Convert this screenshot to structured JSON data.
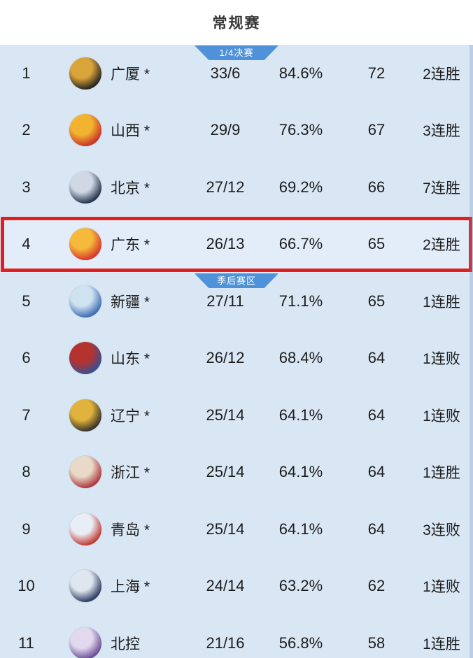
{
  "header": {
    "title": "常规赛"
  },
  "table": {
    "rows": [
      {
        "rank": "1",
        "team": "广厦 *",
        "record": "33/6",
        "win_pct": "84.6%",
        "points": "72",
        "streak": "2连胜",
        "section_badge": "1/4决赛",
        "logo": {
          "name": "guangsha-lions-logo",
          "colors": [
            "#2a2620",
            "#d9a43a"
          ]
        }
      },
      {
        "rank": "2",
        "team": "山西 *",
        "record": "29/9",
        "win_pct": "76.3%",
        "points": "67",
        "streak": "3连胜",
        "logo": {
          "name": "shanxi-loongs-logo",
          "colors": [
            "#c8342b",
            "#f2b430"
          ]
        }
      },
      {
        "rank": "3",
        "team": "北京 *",
        "record": "27/12",
        "win_pct": "69.2%",
        "points": "66",
        "streak": "7连胜",
        "logo": {
          "name": "beijing-ducks-logo",
          "colors": [
            "#27364f",
            "#cfd8e4"
          ]
        }
      },
      {
        "rank": "4",
        "team": "广东 *",
        "record": "26/13",
        "win_pct": "66.7%",
        "points": "65",
        "streak": "2连胜",
        "highlighted": true,
        "logo": {
          "name": "guangdong-tigers-logo",
          "colors": [
            "#d8372b",
            "#f5b93c"
          ]
        }
      },
      {
        "rank": "5",
        "team": "新疆 *",
        "record": "27/11",
        "win_pct": "71.1%",
        "points": "65",
        "streak": "1连胜",
        "section_badge": "季后赛区",
        "logo": {
          "name": "xinjiang-flying-tigers-logo",
          "colors": [
            "#3f6fb5",
            "#cfe2f0"
          ]
        }
      },
      {
        "rank": "6",
        "team": "山东 *",
        "record": "26/12",
        "win_pct": "68.4%",
        "points": "64",
        "streak": "1连败",
        "logo": {
          "name": "shandong-heroes-logo",
          "colors": [
            "#3a4f8f",
            "#b5332f"
          ]
        }
      },
      {
        "rank": "7",
        "team": "辽宁 *",
        "record": "25/14",
        "win_pct": "64.1%",
        "points": "64",
        "streak": "1连败",
        "logo": {
          "name": "liaoning-leopards-logo",
          "colors": [
            "#3a342a",
            "#e0b33c"
          ]
        }
      },
      {
        "rank": "8",
        "team": "浙江 *",
        "record": "25/14",
        "win_pct": "64.1%",
        "points": "64",
        "streak": "1连胜",
        "logo": {
          "name": "zhejiang-golden-bulls-logo",
          "colors": [
            "#b03a3f",
            "#e8d9c8"
          ]
        }
      },
      {
        "rank": "9",
        "team": "青岛 *",
        "record": "25/14",
        "win_pct": "64.1%",
        "points": "64",
        "streak": "3连败",
        "logo": {
          "name": "qingdao-eagles-logo",
          "colors": [
            "#c23b34",
            "#e8eef5"
          ]
        }
      },
      {
        "rank": "10",
        "team": "上海 *",
        "record": "24/14",
        "win_pct": "63.2%",
        "points": "62",
        "streak": "1连败",
        "logo": {
          "name": "shanghai-sharks-logo",
          "colors": [
            "#2e3f66",
            "#dfe6ef"
          ]
        }
      },
      {
        "rank": "11",
        "team": "北控",
        "record": "21/16",
        "win_pct": "56.8%",
        "points": "58",
        "streak": "1连胜",
        "logo": {
          "name": "beikong-royal-fighters-logo",
          "colors": [
            "#6b4f96",
            "#e3d9ef"
          ]
        }
      }
    ]
  },
  "colors": {
    "header_bg": "#ffffff",
    "table_bg": "#d9e7f5",
    "badge_blue": "#4f92d9",
    "highlight_border": "#e01f1f",
    "highlight_bg": "#e3edf9",
    "text": "#1c1c1c"
  }
}
